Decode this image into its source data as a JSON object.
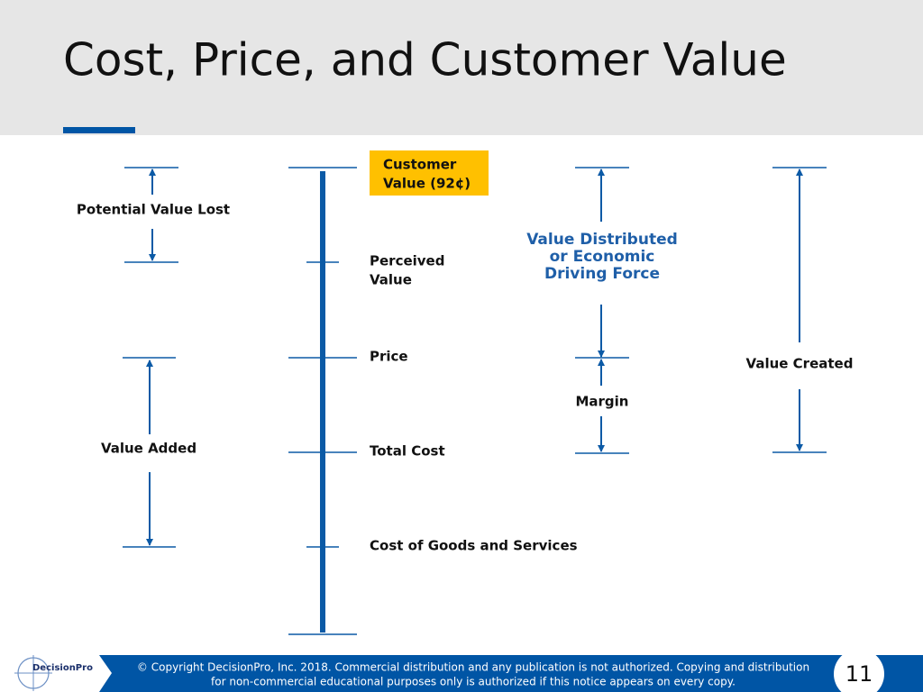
{
  "header": {
    "title": "Cost, Price, and Customer Value"
  },
  "diagram": {
    "customer_value": [
      "Customer",
      "Value (92¢)"
    ],
    "levels": {
      "perceived_value": [
        "Perceived",
        "Value"
      ],
      "price": "Price",
      "total_cost": "Total Cost",
      "cost_of_goods": "Cost of Goods and Services"
    },
    "potential_value_lost": "Potential Value Lost",
    "value_added": "Value Added",
    "value_distributed": [
      "Value Distributed",
      "or Economic",
      "Driving Force"
    ],
    "margin": "Margin",
    "value_created": "Value Created"
  },
  "footer": {
    "logo": "DecisionPro",
    "copyright": [
      "© Copyright DecisionPro, Inc.  2018. Commercial distribution and any publication is not authorized. Copying and distribution",
      "for non-commercial educational purposes only is authorized if this notice appears on every copy."
    ],
    "page_number": "11"
  }
}
